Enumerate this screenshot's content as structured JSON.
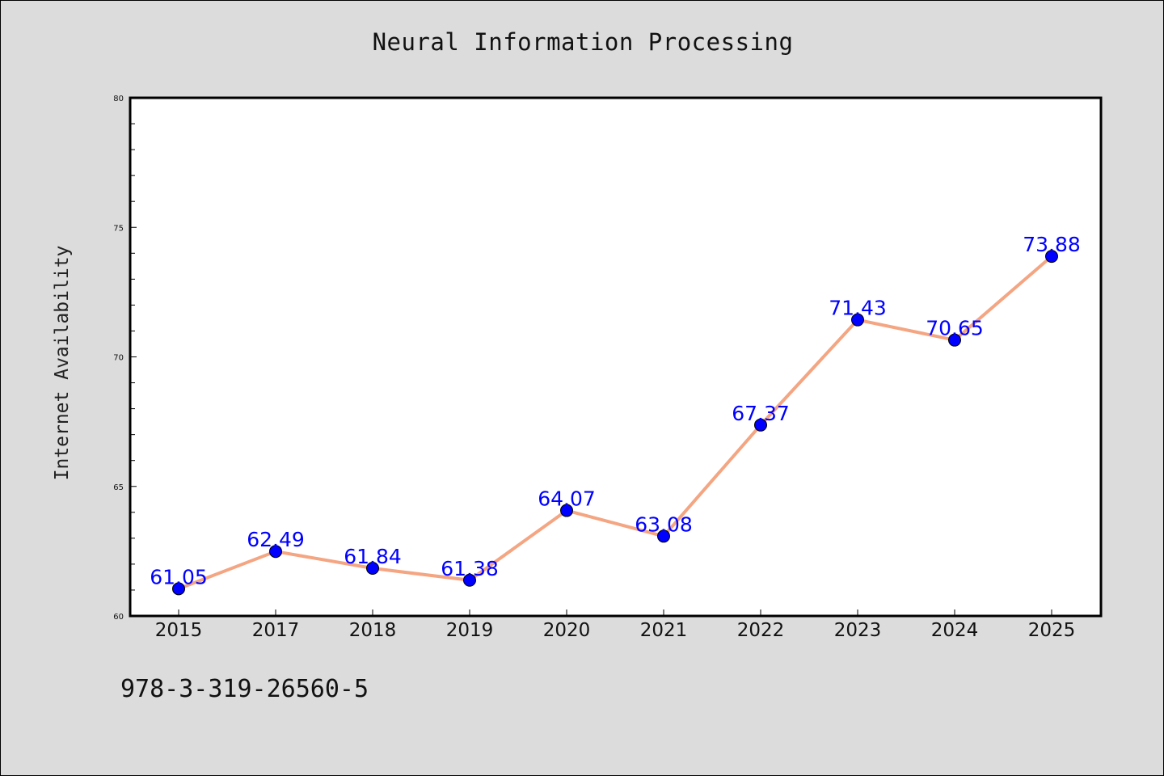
{
  "chart_data": {
    "type": "line",
    "title": "Neural Information Processing",
    "xlabel": "",
    "ylabel": "Internet Availability",
    "categories": [
      "2015",
      "2017",
      "2018",
      "2019",
      "2020",
      "2021",
      "2022",
      "2023",
      "2024",
      "2025"
    ],
    "series": [
      {
        "values": [
          61.05,
          62.49,
          61.84,
          61.38,
          64.07,
          63.08,
          67.37,
          71.43,
          70.65,
          73.88
        ]
      }
    ],
    "data_labels": [
      "61.05",
      "62.49",
      "61.84",
      "61.38",
      "64.07",
      "63.08",
      "67.37",
      "71.43",
      "70.65",
      "73.88"
    ],
    "ylim": [
      60,
      80
    ],
    "y_ticks": [
      60,
      65,
      70,
      75,
      80
    ],
    "grid": false,
    "legend": "none",
    "colors": {
      "line": "#f4a582",
      "marker": "#0000ff",
      "data_label": "#0000ff",
      "plot_background": "#ffffff",
      "figure_background": "#dcdcdc"
    }
  },
  "footer": {
    "isbn": "978-3-319-26560-5"
  }
}
